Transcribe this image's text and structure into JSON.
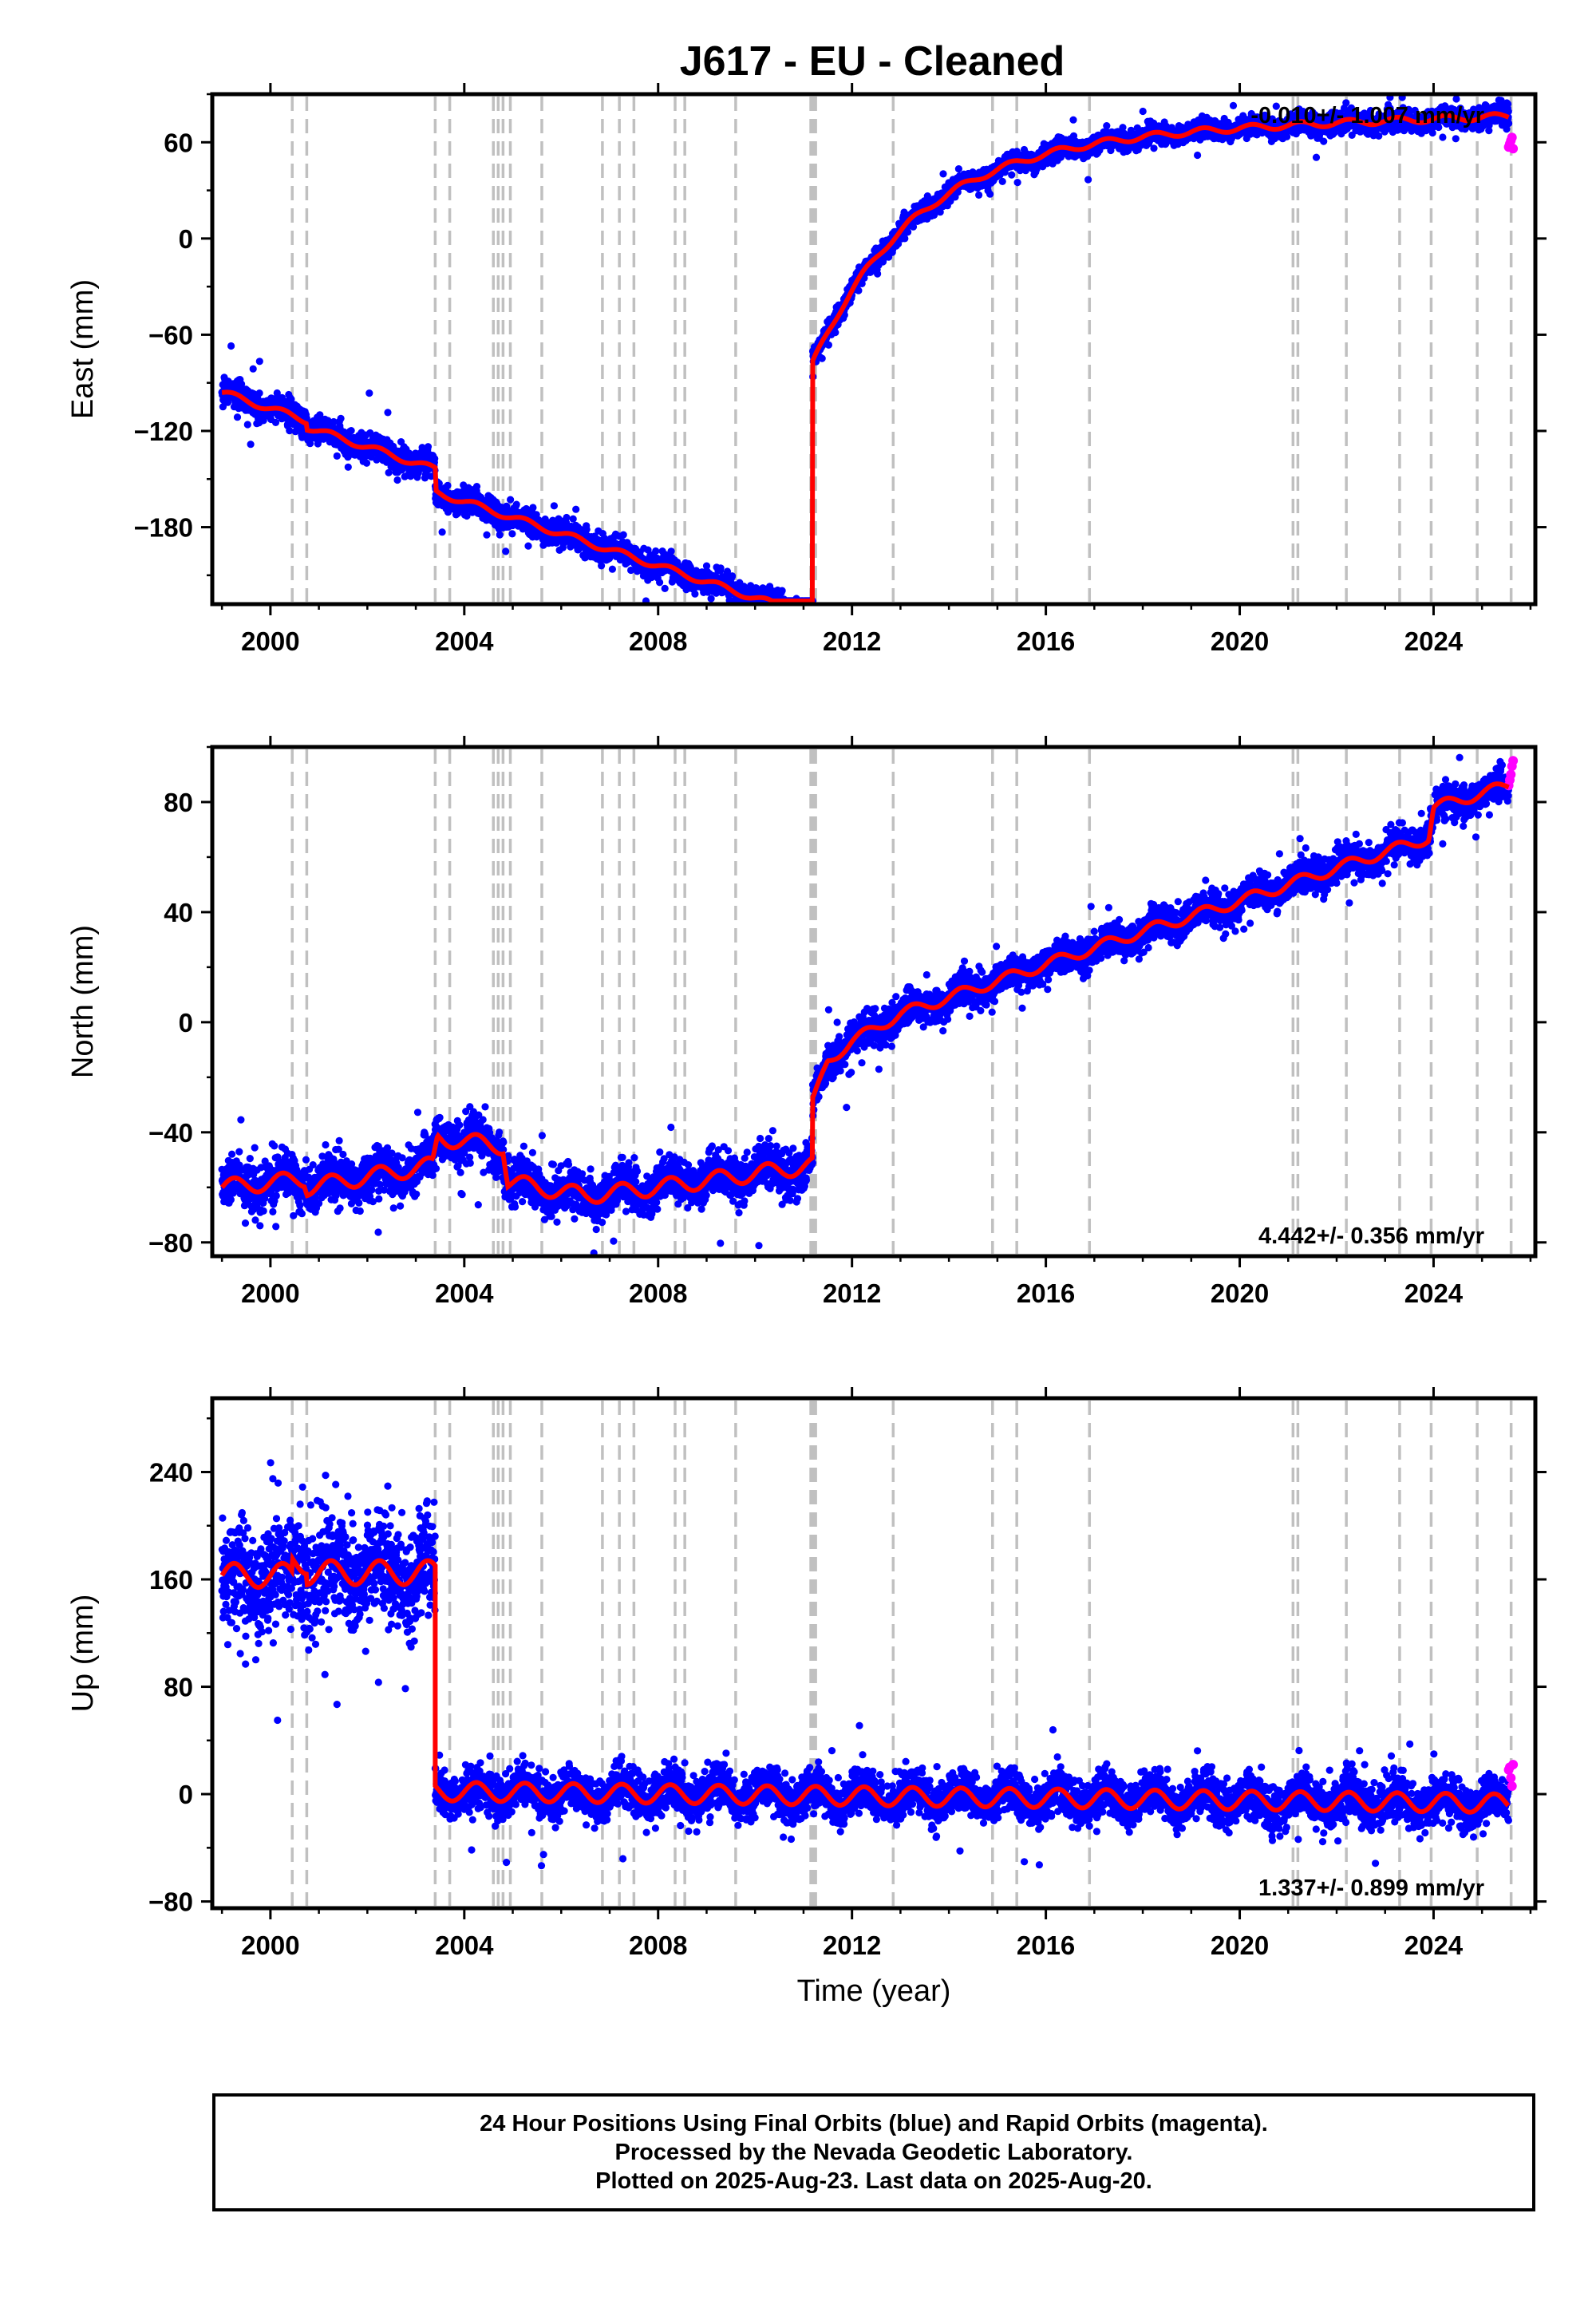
{
  "title": "J617  - EU - Cleaned",
  "colors": {
    "final_orbits": "#0000ff",
    "rapid_orbits": "#ff00ff",
    "model": "#ff0000",
    "event_lines": "#c0c0c0"
  },
  "footer": {
    "line1": "24 Hour Positions Using Final Orbits (blue) and Rapid Orbits (magenta).",
    "line2": "Processed by the Nevada Geodetic Laboratory.",
    "line3": "Plotted on 2025-Aug-23. Last data on 2025-Aug-20."
  },
  "chart_data": [
    {
      "type": "scatter",
      "ylabel": "East (mm)",
      "xlabel": "",
      "xlim": [
        1998.8,
        2026.1
      ],
      "ylim": [
        -228,
        90
      ],
      "xticks": [
        2000,
        2004,
        2008,
        2012,
        2016,
        2020,
        2024
      ],
      "yticks": [
        60,
        0,
        -60,
        -120,
        -180
      ],
      "rate_label": "-0.010+/- 1.007 mm/yr",
      "rate_position": "top-right",
      "events": [
        2000.45,
        2000.75,
        2003.4,
        2003.7,
        2004.6,
        2004.7,
        2004.8,
        2004.95,
        2005.6,
        2006.85,
        2007.2,
        2007.5,
        2008.35,
        2008.55,
        2009.6,
        2011.15,
        2011.2,
        2011.25,
        2012.85,
        2014.9,
        2015.4,
        2016.9,
        2021.1,
        2021.2,
        2022.2,
        2023.3,
        2023.95,
        2024.9,
        2025.6
      ],
      "series": [
        {
          "segment": "pre-2011",
          "x_range": [
            1999.0,
            2011.19
          ],
          "trend_start": -96,
          "trend_end": -218,
          "offsets": [
            [
              2000.75,
              -4
            ],
            [
              2003.4,
              -14
            ]
          ],
          "seasonal_amp": 2,
          "scatter_mm": 4
        },
        {
          "segment": "post-2011",
          "x_range": [
            2011.19,
            2025.55
          ],
          "postseismic_start": -78,
          "postseismic_asymptote": 62,
          "postseismic_tau_yr": 2.1,
          "trend_mm_yr": 1.0,
          "seasonal_amp": 2,
          "scatter_mm": 3
        },
        {
          "segment": "rapid",
          "x_range": [
            2025.55,
            2025.64
          ],
          "values": [
            57,
            59,
            61,
            63,
            56
          ]
        }
      ]
    },
    {
      "type": "scatter",
      "ylabel": "North (mm)",
      "xlabel": "",
      "xlim": [
        1998.8,
        2026.1
      ],
      "ylim": [
        -85,
        100
      ],
      "xticks": [
        2000,
        2004,
        2008,
        2012,
        2016,
        2020,
        2024
      ],
      "yticks": [
        80,
        40,
        0,
        -40,
        -80
      ],
      "rate_label": "4.442+/- 0.356 mm/yr",
      "rate_position": "bottom-right",
      "events": [
        2000.45,
        2000.75,
        2003.4,
        2003.7,
        2004.6,
        2004.7,
        2004.8,
        2004.95,
        2005.6,
        2006.85,
        2007.2,
        2007.5,
        2008.35,
        2008.55,
        2009.6,
        2011.15,
        2011.2,
        2011.25,
        2012.85,
        2014.9,
        2015.4,
        2016.9,
        2021.1,
        2021.2,
        2022.2,
        2023.3,
        2023.95,
        2024.9,
        2025.6
      ],
      "series": [
        {
          "segment": "pre-2011",
          "x_range": [
            1999.0,
            2011.19
          ],
          "knots": [
            [
              1999.0,
              -60
            ],
            [
              2000.7,
              -57
            ],
            [
              2000.76,
              -60
            ],
            [
              2003.35,
              -52
            ],
            [
              2003.45,
              -42
            ],
            [
              2004.8,
              -45
            ],
            [
              2004.9,
              -58
            ],
            [
              2006.5,
              -63
            ],
            [
              2008.0,
              -60
            ],
            [
              2011.19,
              -52
            ]
          ],
          "seasonal_amp": 3,
          "scatter_mm": 4
        },
        {
          "segment": "post-2011",
          "x_range": [
            2011.19,
            2025.55
          ],
          "knots": [
            [
              2011.2,
              -29
            ],
            [
              2011.5,
              -14
            ],
            [
              2012.0,
              -7
            ],
            [
              2013.0,
              3
            ],
            [
              2014.0,
              9
            ],
            [
              2016.0,
              21
            ],
            [
              2018.0,
              33
            ],
            [
              2020.0,
              44
            ],
            [
              2022.0,
              56
            ],
            [
              2023.9,
              67
            ],
            [
              2024.0,
              78
            ],
            [
              2025.55,
              86
            ]
          ],
          "seasonal_amp": 2,
          "scatter_mm": 3
        },
        {
          "segment": "rapid",
          "x_range": [
            2025.55,
            2025.64
          ],
          "values": [
            86,
            88,
            90,
            93,
            95
          ]
        }
      ]
    },
    {
      "type": "scatter",
      "ylabel": "Up (mm)",
      "xlabel": "Time (year)",
      "xlim": [
        1998.8,
        2026.1
      ],
      "ylim": [
        -85,
        295
      ],
      "xticks": [
        2000,
        2004,
        2008,
        2012,
        2016,
        2020,
        2024
      ],
      "yticks": [
        240,
        160,
        80,
        0,
        -80
      ],
      "rate_label": "1.337+/- 0.899 mm/yr",
      "rate_position": "bottom-right",
      "events": [
        2000.45,
        2000.75,
        2003.4,
        2003.7,
        2004.6,
        2004.7,
        2004.8,
        2004.95,
        2005.6,
        2006.85,
        2007.2,
        2007.5,
        2008.35,
        2008.55,
        2009.6,
        2011.15,
        2011.2,
        2011.25,
        2012.85,
        2014.9,
        2015.4,
        2016.9,
        2021.1,
        2021.2,
        2022.2,
        2023.3,
        2023.95,
        2024.9,
        2025.6
      ],
      "series": [
        {
          "segment": "pre-2003",
          "x_range": [
            1999.0,
            2003.4
          ],
          "level": 163,
          "offsets": [
            [
              2000.45,
              10
            ],
            [
              2000.75,
              -8
            ]
          ],
          "seasonal_amp": 9,
          "scatter_mm": 20
        },
        {
          "segment": "post-2003",
          "x_range": [
            2003.4,
            2025.55
          ],
          "level": 2,
          "trend_mm_yr": -0.4,
          "seasonal_amp": 7,
          "scatter_mm": 8
        },
        {
          "segment": "rapid",
          "x_range": [
            2025.55,
            2025.64
          ],
          "values": [
            18,
            20,
            12,
            6,
            22
          ]
        }
      ]
    }
  ]
}
